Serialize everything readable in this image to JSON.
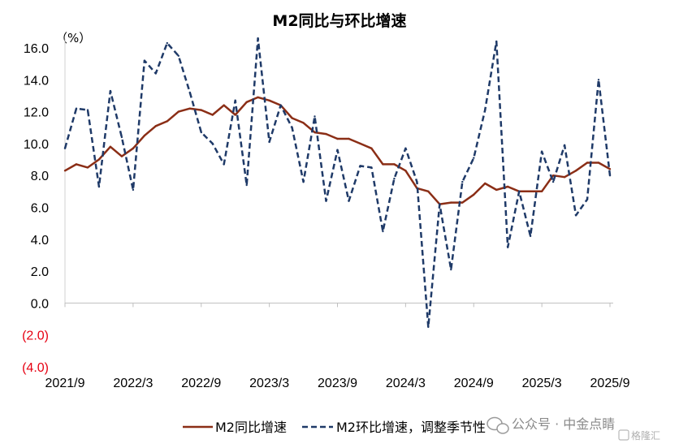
{
  "chart_data": {
    "type": "line",
    "title": "M2同比与环比增速",
    "y_unit_label": "（%）",
    "ylim": [
      -4.0,
      16.0
    ],
    "y_ticks": [
      {
        "value": 16,
        "label": "16.0"
      },
      {
        "value": 14,
        "label": "14.0"
      },
      {
        "value": 12,
        "label": "12.0"
      },
      {
        "value": 10,
        "label": "10.0"
      },
      {
        "value": 8,
        "label": "8.0"
      },
      {
        "value": 6,
        "label": "6.0"
      },
      {
        "value": 4,
        "label": "4.0"
      },
      {
        "value": 2,
        "label": "2.0"
      },
      {
        "value": 0,
        "label": "0.0"
      },
      {
        "value": -2,
        "label": "(2.0)"
      },
      {
        "value": -4,
        "label": "(4.0)"
      }
    ],
    "negative_tick_color": "#e60012",
    "x": [
      "2021/9",
      "2021/10",
      "2021/11",
      "2021/12",
      "2022/1",
      "2022/2",
      "2022/3",
      "2022/4",
      "2022/5",
      "2022/6",
      "2022/7",
      "2022/8",
      "2022/9",
      "2022/10",
      "2022/11",
      "2022/12",
      "2023/1",
      "2023/2",
      "2023/3",
      "2023/4",
      "2023/5",
      "2023/6",
      "2023/7",
      "2023/8",
      "2023/9",
      "2023/10",
      "2023/11",
      "2023/12",
      "2024/1",
      "2024/2",
      "2024/3",
      "2024/4",
      "2024/5",
      "2024/6",
      "2024/7",
      "2024/8",
      "2024/9",
      "2024/10",
      "2024/11",
      "2024/12",
      "2025/1",
      "2025/2",
      "2025/3",
      "2025/4",
      "2025/5",
      "2025/6",
      "2025/7",
      "2025/8",
      "2025/9"
    ],
    "x_tick_labels": [
      "2021/9",
      "2022/3",
      "2022/9",
      "2023/3",
      "2023/9",
      "2024/3",
      "2024/9",
      "2025/3",
      "2025/9"
    ],
    "series": [
      {
        "name": "M2同比增速",
        "style": "solid",
        "color": "#8b2e16",
        "values": [
          8.3,
          8.7,
          8.5,
          9.0,
          9.8,
          9.2,
          9.7,
          10.5,
          11.1,
          11.4,
          12.0,
          12.2,
          12.1,
          11.8,
          12.4,
          11.8,
          12.6,
          12.9,
          12.7,
          12.4,
          11.6,
          11.3,
          10.7,
          10.6,
          10.3,
          10.3,
          10.0,
          9.7,
          8.7,
          8.7,
          8.3,
          7.2,
          7.0,
          6.2,
          6.3,
          6.3,
          6.8,
          7.5,
          7.1,
          7.3,
          7.0,
          7.0,
          7.0,
          8.0,
          7.9,
          8.3,
          8.8,
          8.8,
          8.4
        ]
      },
      {
        "name": "M2环比增速，调整季节性",
        "style": "dashed",
        "color": "#1f3a68",
        "values": [
          9.7,
          12.2,
          12.1,
          7.3,
          13.3,
          10.4,
          7.1,
          15.2,
          14.4,
          16.3,
          15.5,
          13.2,
          10.7,
          10.0,
          8.7,
          12.7,
          7.4,
          16.6,
          10.1,
          12.4,
          11.0,
          7.6,
          11.7,
          6.4,
          9.6,
          6.4,
          8.6,
          8.5,
          4.5,
          7.8,
          9.7,
          7.6,
          -1.5,
          6.2,
          2.1,
          7.6,
          9.1,
          12.1,
          16.4,
          3.5,
          7.0,
          4.2,
          9.5,
          7.6,
          9.9,
          5.5,
          6.5,
          14.0,
          8.0
        ]
      }
    ],
    "legend_position": "bottom",
    "grid": false
  },
  "watermark": {
    "text": "公众号 · 中金点睛",
    "corner_text": "格隆汇"
  }
}
